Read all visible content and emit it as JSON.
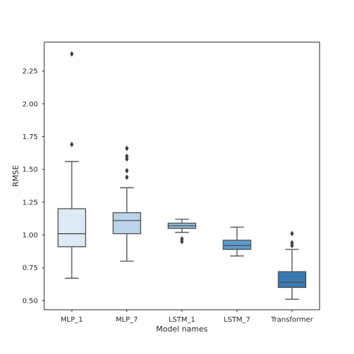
{
  "chart_data": {
    "type": "box",
    "title": "",
    "xlabel": "Model names",
    "ylabel": "RMSE",
    "ylim": [
      0.43,
      2.47
    ],
    "yticks": [
      0.5,
      0.75,
      1.0,
      1.25,
      1.5,
      1.75,
      2.0,
      2.25
    ],
    "ytick_labels": [
      "0.50",
      "0.75",
      "1.00",
      "1.25",
      "1.50",
      "1.75",
      "2.00",
      "2.25"
    ],
    "grid": false,
    "categories": [
      "MLP_1",
      "MLP_7",
      "LSTM_1",
      "LSTM_7",
      "Transformer"
    ],
    "boxes": [
      {
        "name": "MLP_1",
        "color": "#dde9f5",
        "whisker_low": 0.67,
        "q1": 0.91,
        "median": 1.01,
        "q3": 1.2,
        "whisker_high": 1.56,
        "outliers": [
          1.69,
          2.38
        ]
      },
      {
        "name": "MLP_7",
        "color": "#bcd4e9",
        "whisker_low": 0.8,
        "q1": 1.01,
        "median": 1.11,
        "q3": 1.17,
        "whisker_high": 1.36,
        "outliers": [
          1.44,
          1.49,
          1.58,
          1.6,
          1.66
        ]
      },
      {
        "name": "LSTM_1",
        "color": "#91bdda",
        "whisker_low": 1.02,
        "q1": 1.05,
        "median": 1.07,
        "q3": 1.09,
        "whisker_high": 1.12,
        "outliers": [
          0.95,
          0.97
        ]
      },
      {
        "name": "LSTM_7",
        "color": "#5d9bc9",
        "whisker_low": 0.84,
        "q1": 0.89,
        "median": 0.92,
        "q3": 0.96,
        "whisker_high": 1.06,
        "outliers": []
      },
      {
        "name": "Transformer",
        "color": "#3a79b0",
        "whisker_low": 0.51,
        "q1": 0.6,
        "median": 0.64,
        "q3": 0.72,
        "whisker_high": 0.89,
        "outliers": [
          0.92,
          0.94,
          1.01
        ]
      }
    ]
  }
}
